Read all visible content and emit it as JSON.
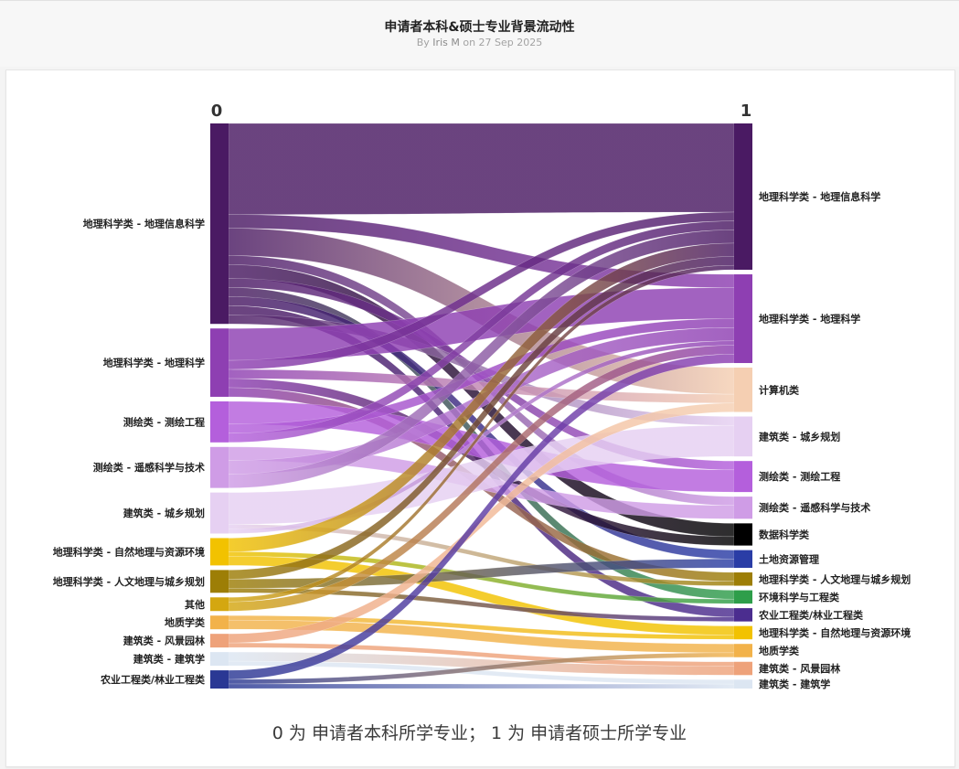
{
  "header": {
    "title": "申请者本科&硕士专业背景流动性",
    "byline_by": "By",
    "author": "Iris M",
    "byline_on": "on",
    "date": "27 Sep 2025"
  },
  "caption": "0 为 申请者本科所学专业； 1 为 申请者硕士所学专业",
  "chart_data": {
    "type": "sankey",
    "stages": [
      "0",
      "1"
    ],
    "left_nodes": [
      {
        "name": "地理科学类 - 地理信息科学",
        "color": "#4a1a63",
        "value": 44
      },
      {
        "name": "地理科学类 - 地理科学",
        "color": "#8e3fb2",
        "value": 15
      },
      {
        "name": "测绘类 - 测绘工程",
        "color": "#b45fdc",
        "value": 9
      },
      {
        "name": "测绘类 - 遥感科学与技术",
        "color": "#cf9ce6",
        "value": 9
      },
      {
        "name": "建筑类 - 城乡规划",
        "color": "#e6d0f2",
        "value": 9
      },
      {
        "name": "地理科学类 - 自然地理与资源环境",
        "color": "#f2c200",
        "value": 6
      },
      {
        "name": "地理科学类 - 人文地理与城乡规划",
        "color": "#9d7e06",
        "value": 5
      },
      {
        "name": "其他",
        "color": "#d4a710",
        "value": 3
      },
      {
        "name": "地质学类",
        "color": "#f2b24a",
        "value": 3
      },
      {
        "name": "建筑类 - 风景园林",
        "color": "#eea27a",
        "value": 3
      },
      {
        "name": "建筑类 - 建筑学",
        "color": "#dce6f2",
        "value": 3
      },
      {
        "name": "农业工程类/林业工程类",
        "color": "#2a3894",
        "value": 4
      }
    ],
    "right_nodes": [
      {
        "name": "地理科学类 - 地理信息科学",
        "color": "#4a1a63",
        "value": 33
      },
      {
        "name": "地理科学类 - 地理科学",
        "color": "#8e3fb2",
        "value": 20
      },
      {
        "name": "计算机类",
        "color": "#f5cfb2",
        "value": 10
      },
      {
        "name": "建筑类 - 城乡规划",
        "color": "#e6d0f2",
        "value": 9
      },
      {
        "name": "测绘类 - 测绘工程",
        "color": "#b45fdc",
        "value": 7
      },
      {
        "name": "测绘类 - 遥感科学与技术",
        "color": "#cf9ce6",
        "value": 5
      },
      {
        "name": "数据科学类",
        "color": "#000000",
        "value": 5
      },
      {
        "name": "土地资源管理",
        "color": "#2a3da6",
        "value": 4
      },
      {
        "name": "地理科学类 - 人文地理与城乡规划",
        "color": "#9d7e06",
        "value": 3
      },
      {
        "name": "环境科学与工程类",
        "color": "#2e9e4a",
        "value": 3
      },
      {
        "name": "农业工程类/林业工程类",
        "color": "#4b2d8f",
        "value": 3
      },
      {
        "name": "地理科学类 - 自然地理与资源环境",
        "color": "#f2c200",
        "value": 3
      },
      {
        "name": "地质学类",
        "color": "#f2b24a",
        "value": 3
      },
      {
        "name": "建筑类 - 风景园林",
        "color": "#eea27a",
        "value": 3
      },
      {
        "name": "建筑类 - 建筑学",
        "color": "#dce6f2",
        "value": 2
      }
    ],
    "links": [
      {
        "source": 0,
        "target": 0,
        "value": 20
      },
      {
        "source": 0,
        "target": 1,
        "value": 3
      },
      {
        "source": 0,
        "target": 2,
        "value": 6
      },
      {
        "source": 0,
        "target": 5,
        "value": 2
      },
      {
        "source": 0,
        "target": 6,
        "value": 3
      },
      {
        "source": 0,
        "target": 4,
        "value": 2
      },
      {
        "source": 0,
        "target": 9,
        "value": 2
      },
      {
        "source": 0,
        "target": 7,
        "value": 2
      },
      {
        "source": 0,
        "target": 10,
        "value": 2
      },
      {
        "source": 0,
        "target": 3,
        "value": 2
      },
      {
        "source": 1,
        "target": 1,
        "value": 7
      },
      {
        "source": 1,
        "target": 0,
        "value": 2
      },
      {
        "source": 1,
        "target": 2,
        "value": 2
      },
      {
        "source": 1,
        "target": 6,
        "value": 2
      },
      {
        "source": 1,
        "target": 8,
        "value": 2
      },
      {
        "source": 2,
        "target": 4,
        "value": 5
      },
      {
        "source": 2,
        "target": 1,
        "value": 2
      },
      {
        "source": 2,
        "target": 0,
        "value": 2
      },
      {
        "source": 3,
        "target": 5,
        "value": 3
      },
      {
        "source": 3,
        "target": 1,
        "value": 3
      },
      {
        "source": 3,
        "target": 0,
        "value": 3
      },
      {
        "source": 4,
        "target": 3,
        "value": 7
      },
      {
        "source": 4,
        "target": 8,
        "value": 1
      },
      {
        "source": 4,
        "target": 1,
        "value": 1
      },
      {
        "source": 5,
        "target": 0,
        "value": 3
      },
      {
        "source": 5,
        "target": 9,
        "value": 1
      },
      {
        "source": 5,
        "target": 11,
        "value": 2
      },
      {
        "source": 6,
        "target": 0,
        "value": 2
      },
      {
        "source": 6,
        "target": 7,
        "value": 2
      },
      {
        "source": 6,
        "target": 10,
        "value": 1
      },
      {
        "source": 7,
        "target": 0,
        "value": 1
      },
      {
        "source": 7,
        "target": 1,
        "value": 2
      },
      {
        "source": 8,
        "target": 11,
        "value": 1
      },
      {
        "source": 8,
        "target": 12,
        "value": 2
      },
      {
        "source": 9,
        "target": 2,
        "value": 2
      },
      {
        "source": 9,
        "target": 13,
        "value": 1
      },
      {
        "source": 10,
        "target": 13,
        "value": 2
      },
      {
        "source": 10,
        "target": 14,
        "value": 1
      },
      {
        "source": 11,
        "target": 1,
        "value": 2
      },
      {
        "source": 11,
        "target": 12,
        "value": 1
      },
      {
        "source": 11,
        "target": 14,
        "value": 1
      }
    ]
  }
}
